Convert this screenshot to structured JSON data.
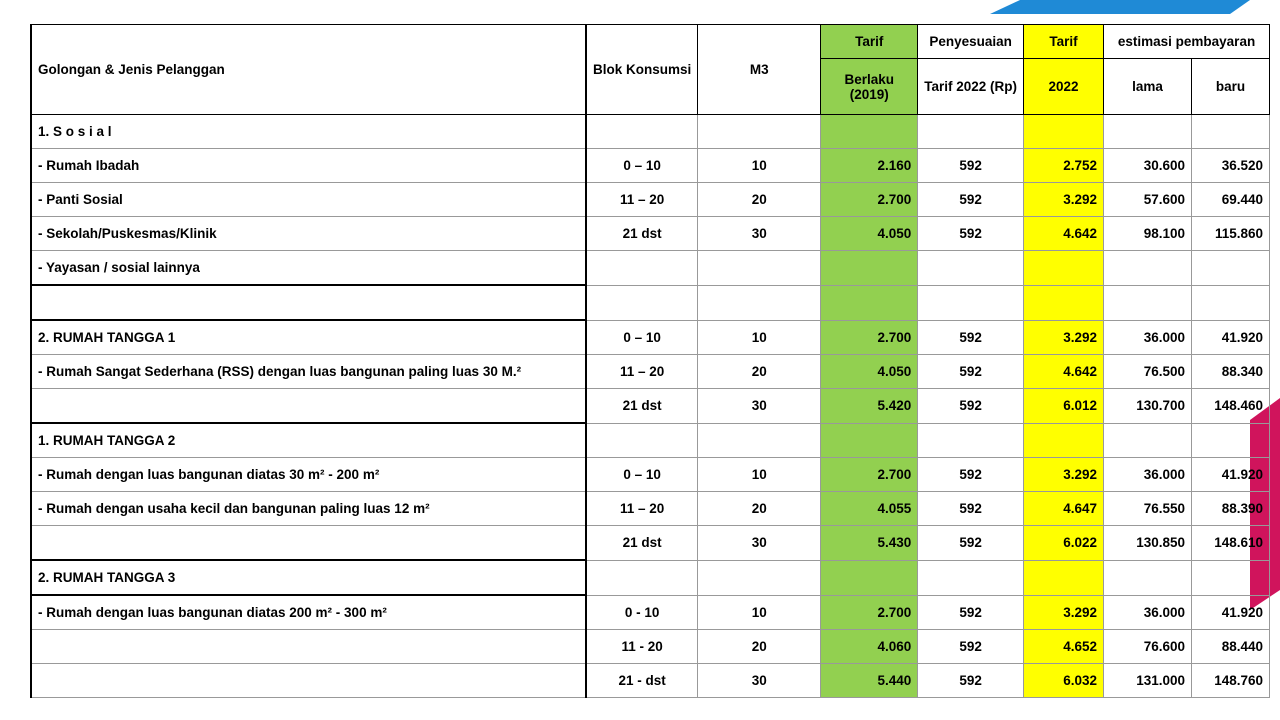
{
  "header": {
    "golongan": "Golongan & Jenis Pelanggan",
    "blok": "Blok Konsumsi",
    "m3": "M3",
    "tarif_berlaku_top": "Tarif",
    "tarif_berlaku_bottom": "Berlaku (2019)",
    "penyesuaian_top": "Penyesuaian",
    "penyesuaian_bottom": "Tarif 2022 (Rp)",
    "tarif_2022_top": "Tarif",
    "tarif_2022_bottom": "2022",
    "estimasi": "estimasi pembayaran",
    "lama": "lama",
    "baru": "baru"
  },
  "rows": [
    {
      "label": "1.  S o s i a l"
    },
    {
      "label": "-    Rumah Ibadah",
      "blok": "0 – 10",
      "m3": "10",
      "tarif_berlaku": "2.160",
      "penyesuaian": "592",
      "tarif_2022": "2.752",
      "lama": "30.600",
      "baru": "36.520"
    },
    {
      "label": "-    Panti Sosial",
      "blok": "11 – 20",
      "m3": "20",
      "tarif_berlaku": "2.700",
      "penyesuaian": "592",
      "tarif_2022": "3.292",
      "lama": "57.600",
      "baru": "69.440"
    },
    {
      "label": "-    Sekolah/Puskesmas/Klinik",
      "blok": "21 dst",
      "m3": "30",
      "tarif_berlaku": "4.050",
      "penyesuaian": "592",
      "tarif_2022": "4.642",
      "lama": "98.100",
      "baru": "115.860"
    },
    {
      "label": "-    Yayasan / sosial lainnya"
    },
    null,
    {
      "label": "2.   RUMAH TANGGA 1",
      "blok": "0 – 10",
      "m3": "10",
      "tarif_berlaku": "2.700",
      "penyesuaian": "592",
      "tarif_2022": "3.292",
      "lama": "36.000",
      "baru": "41.920"
    },
    {
      "label": "-    Rumah Sangat Sederhana (RSS) dengan luas bangunan paling luas 30 M.²",
      "blok": "11 – 20",
      "m3": "20",
      "tarif_berlaku": "4.050",
      "penyesuaian": "592",
      "tarif_2022": "4.642",
      "lama": "76.500",
      "baru": "88.340"
    },
    {
      "blok": "21 dst",
      "m3": "30",
      "tarif_berlaku": "5.420",
      "penyesuaian": "592",
      "tarif_2022": "6.012",
      "lama": "130.700",
      "baru": "148.460"
    },
    {
      "label": "1.   RUMAH TANGGA  2"
    },
    {
      "label": " - Rumah dengan luas bangunan diatas 30 m² - 200 m²",
      "blok": "0 – 10",
      "m3": "10",
      "tarif_berlaku": "2.700",
      "penyesuaian": "592",
      "tarif_2022": "3.292",
      "lama": "36.000",
      "baru": "41.920"
    },
    {
      "label": "  - Rumah dengan usaha kecil dan bangunan paling luas 12 m²",
      "blok": "11 – 20",
      "m3": "20",
      "tarif_berlaku": "4.055",
      "penyesuaian": "592",
      "tarif_2022": "4.647",
      "lama": "76.550",
      "baru": "88.390"
    },
    {
      "blok": "21 dst",
      "m3": "30",
      "tarif_berlaku": "5.430",
      "penyesuaian": "592",
      "tarif_2022": "6.022",
      "lama": "130.850",
      "baru": "148.610"
    },
    {
      "label": "2.   RUMAH TANGGA  3"
    },
    {
      "label": " - Rumah dengan luas bangunan diatas 200 m² -  300 m²",
      "blok": "0 - 10",
      "m3": "10",
      "tarif_berlaku": "2.700",
      "penyesuaian": "592",
      "tarif_2022": "3.292",
      "lama": "36.000",
      "baru": "41.920"
    },
    {
      "blok": "11 - 20",
      "m3": "20",
      "tarif_berlaku": "4.060",
      "penyesuaian": "592",
      "tarif_2022": "4.652",
      "lama": "76.600",
      "baru": "88.440"
    },
    {
      "blok": "21 - dst",
      "m3": "30",
      "tarif_berlaku": "5.440",
      "penyesuaian": "592",
      "tarif_2022": "6.032",
      "lama": "131.000",
      "baru": "148.760"
    }
  ]
}
